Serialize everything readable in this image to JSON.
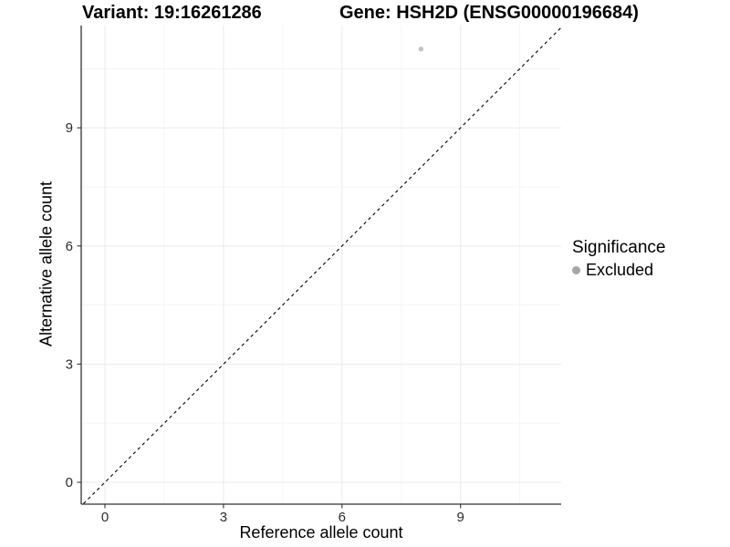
{
  "titles": {
    "variant": "Variant: 19:16261286",
    "gene": "Gene: HSH2D (ENSG00000196684)"
  },
  "legend": {
    "title": "Significance",
    "items": [
      {
        "label": "Excluded",
        "color": "#a6a6a6"
      }
    ]
  },
  "chart_data": {
    "type": "scatter",
    "title": "Variant: 19:16261286   Gene: HSH2D (ENSG00000196684)",
    "xlabel": "Reference allele count",
    "ylabel": "Alternative allele count",
    "xlim": [
      -0.6,
      11.55
    ],
    "ylim": [
      -0.55,
      11.65
    ],
    "x_major_ticks": [
      0,
      3,
      6,
      9
    ],
    "y_major_ticks": [
      0,
      3,
      6,
      9
    ],
    "x_minor_gridlines": [
      1.5,
      4.5,
      7.5,
      10.5
    ],
    "y_minor_gridlines": [
      1.5,
      4.5,
      7.5,
      10.5
    ],
    "grid": true,
    "legend_position": "right",
    "series": [
      {
        "name": "Excluded",
        "points": [
          {
            "x": 8,
            "y": 11
          }
        ],
        "color": "#c2c2c2"
      }
    ],
    "reference_line": {
      "kind": "identity",
      "slope": 1,
      "intercept": 0,
      "style": "dashed",
      "color": "#000000"
    }
  },
  "colors": {
    "background": "#ffffff",
    "axis_line": "#333333",
    "tick_text": "#2b2b2b",
    "grid_major": "#ebebeb",
    "grid_minor": "#f5f5f5"
  }
}
